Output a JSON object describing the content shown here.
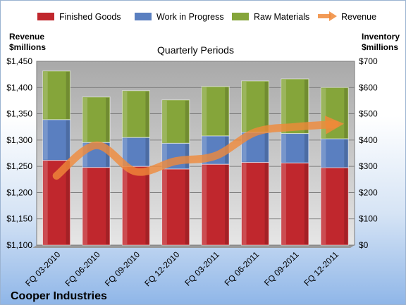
{
  "chart_data": {
    "type": "bar",
    "stacked": true,
    "subtitle": "Quarterly Periods",
    "company": "Cooper Industries",
    "left_axis_label": [
      "Revenue",
      "$millions"
    ],
    "right_axis_label": [
      "Inventory",
      "$millions"
    ],
    "categories": [
      "FQ 03-2010",
      "FQ 06-2010",
      "FQ 09-2010",
      "FQ 12-2010",
      "FQ 03-2011",
      "FQ 06-2011",
      "FQ 09-2011",
      "FQ 12-2011"
    ],
    "left_ticks": [
      "$1,100",
      "$1,150",
      "$1,200",
      "$1,250",
      "$1,300",
      "$1,350",
      "$1,400",
      "$1,450"
    ],
    "right_ticks": [
      "$0",
      "$100",
      "$200",
      "$300",
      "$400",
      "$500",
      "$600",
      "$700"
    ],
    "ylim_left": [
      1100,
      1450
    ],
    "ylim_right": [
      0,
      700
    ],
    "series": [
      {
        "name": "Finished Goods",
        "color": "#c0272d",
        "values": [
          323,
          296,
          300,
          290,
          308,
          315,
          313,
          295
        ]
      },
      {
        "name": "Work in Progress",
        "color": "#5a7fc0",
        "values": [
          155,
          95,
          110,
          98,
          108,
          115,
          112,
          110
        ]
      },
      {
        "name": "Raw Materials",
        "color": "#85a53a",
        "values": [
          185,
          173,
          178,
          165,
          188,
          195,
          208,
          195
        ]
      }
    ],
    "line_series": {
      "name": "Revenue",
      "color": "#f08a3a",
      "values": [
        1232,
        1290,
        1240,
        1260,
        1270,
        1315,
        1325,
        1330
      ]
    },
    "grid": true,
    "legend_position": "top"
  }
}
